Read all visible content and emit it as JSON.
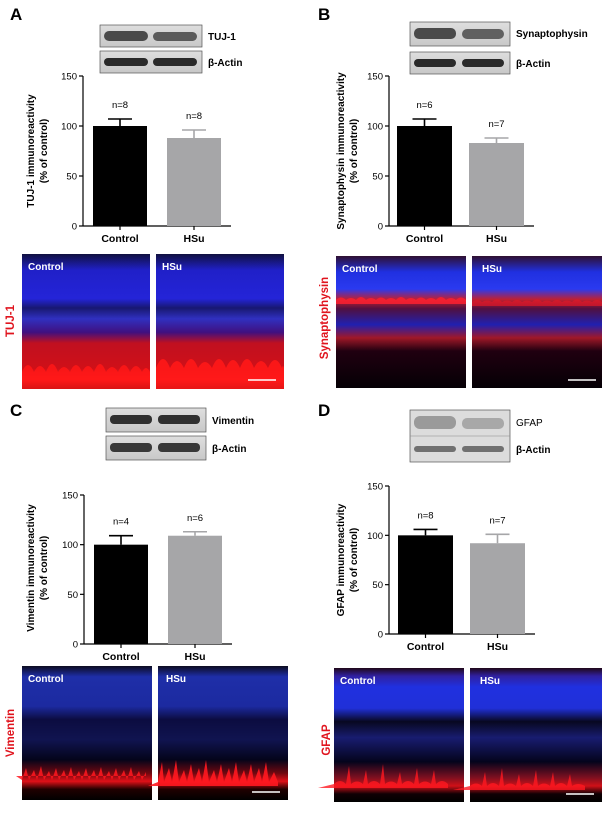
{
  "chart_data": [
    {
      "type": "bar",
      "panel": "A",
      "marker": "TUJ-1",
      "loading_control": "β-Actin",
      "categories": [
        "Control",
        "HSu"
      ],
      "values": [
        100,
        88
      ],
      "errors": [
        7,
        8
      ],
      "n": [
        "n=8",
        "n=8"
      ],
      "ylabel_line1": "TUJ-1 immunoreactivity",
      "ylabel_line2": "(% of control)",
      "ylim": [
        0,
        150
      ],
      "yticks": [
        "0",
        "50",
        "100",
        "150"
      ],
      "image_labels": [
        "Control",
        "HSu"
      ],
      "stain_label": "TUJ-1"
    },
    {
      "type": "bar",
      "panel": "B",
      "marker": "Synaptophysin",
      "loading_control": "β-Actin",
      "categories": [
        "Control",
        "HSu"
      ],
      "values": [
        100,
        83
      ],
      "errors": [
        7,
        5
      ],
      "n": [
        "n=6",
        "n=7"
      ],
      "ylabel_line1": "Synaptophysin immunoreactivity",
      "ylabel_line2": "(% of control)",
      "ylim": [
        0,
        150
      ],
      "yticks": [
        "0",
        "50",
        "100",
        "150"
      ],
      "image_labels": [
        "Control",
        "HSu"
      ],
      "stain_label": "Synaptophysin"
    },
    {
      "type": "bar",
      "panel": "C",
      "marker": "Vimentin",
      "loading_control": "β-Actin",
      "categories": [
        "Control",
        "HSu"
      ],
      "values": [
        100,
        109
      ],
      "errors": [
        9,
        4
      ],
      "n": [
        "n=4",
        "n=6"
      ],
      "ylabel_line1": "Vimentin immunoreactivity",
      "ylabel_line2": "(% of control)",
      "ylim": [
        0,
        150
      ],
      "yticks": [
        "0",
        "50",
        "100",
        "150"
      ],
      "image_labels": [
        "Control",
        "HSu"
      ],
      "stain_label": "Vimentin"
    },
    {
      "type": "bar",
      "panel": "D",
      "marker": "GFAP",
      "loading_control": "β-Actin",
      "categories": [
        "Control",
        "HSu"
      ],
      "values": [
        100,
        92
      ],
      "errors": [
        6,
        9
      ],
      "n": [
        "n=8",
        "n=7"
      ],
      "ylabel_line1": "GFAP immunoreactivity",
      "ylabel_line2": "(% of control)",
      "ylim": [
        0,
        150
      ],
      "yticks": [
        "0",
        "50",
        "100",
        "150"
      ],
      "image_labels": [
        "Control",
        "HSu"
      ],
      "stain_label": "GFAP"
    }
  ],
  "colors": {
    "control_bar": "#000000",
    "hsu_bar": "#a6a6a8",
    "stain_red": "#e0141e",
    "nuclear_blue": "#1a2fd8"
  }
}
